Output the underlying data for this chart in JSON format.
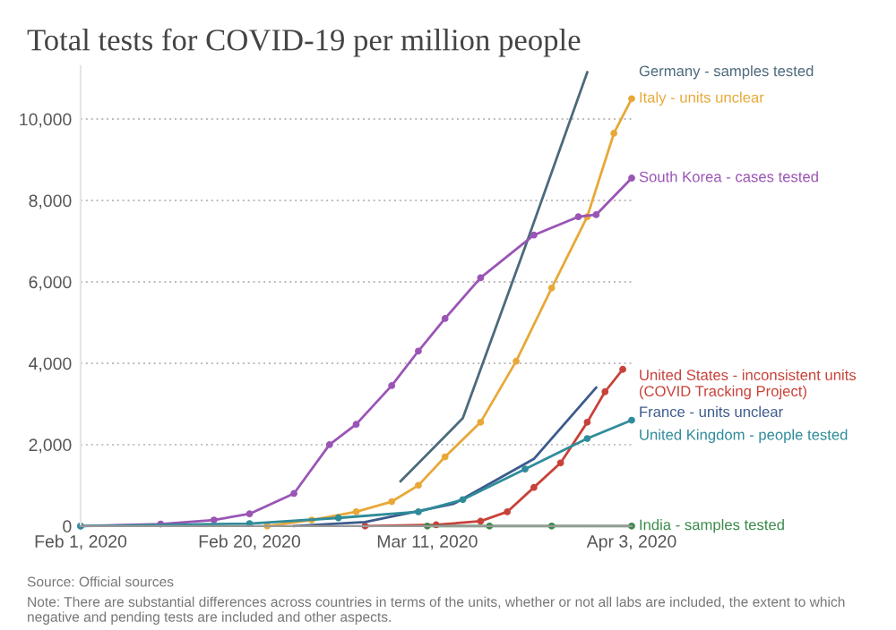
{
  "chart_data": {
    "type": "line",
    "title": "Total tests for COVID-19 per million people",
    "xlim": [
      "2020-02-01",
      "2020-04-03"
    ],
    "ylim": [
      0,
      11300
    ],
    "xticks": [
      {
        "value": "2020-02-01",
        "label": "Feb 1, 2020"
      },
      {
        "value": "2020-02-20",
        "label": "Feb 20, 2020"
      },
      {
        "value": "2020-03-11",
        "label": "Mar 11, 2020"
      },
      {
        "value": "2020-04-03",
        "label": "Apr 3, 2020"
      }
    ],
    "yticks": [
      0,
      {
        "value": 2000,
        "label": "2,000"
      },
      {
        "value": 4000,
        "label": "4,000"
      },
      {
        "value": 6000,
        "label": "6,000"
      },
      {
        "value": 8000,
        "label": "8,000"
      },
      {
        "value": 10000,
        "label": "10,000"
      }
    ],
    "grid": "y",
    "series": [
      {
        "name": "Germany - samples tested",
        "color": "#4c6a7c",
        "marker": "none",
        "x": [
          "2020-03-08",
          "2020-03-15",
          "2020-03-22",
          "2020-03-29"
        ],
        "values": [
          1100,
          2650,
          6850,
          11150
        ]
      },
      {
        "name": "Italy - units unclear",
        "color": "#e8a838",
        "marker": "circle",
        "x": [
          "2020-02-22",
          "2020-02-27",
          "2020-03-03",
          "2020-03-07",
          "2020-03-10",
          "2020-03-13",
          "2020-03-17",
          "2020-03-21",
          "2020-03-25",
          "2020-03-29",
          "2020-04-01",
          "2020-04-03"
        ],
        "values": [
          0,
          150,
          350,
          600,
          1000,
          1700,
          2550,
          4050,
          5850,
          7600,
          9650,
          10500
        ]
      },
      {
        "name": "South Korea - cases tested",
        "color": "#9a55b5",
        "marker": "circle",
        "x": [
          "2020-02-01",
          "2020-02-10",
          "2020-02-16",
          "2020-02-20",
          "2020-02-25",
          "2020-02-29",
          "2020-03-03",
          "2020-03-07",
          "2020-03-10",
          "2020-03-13",
          "2020-03-17",
          "2020-03-23",
          "2020-03-28",
          "2020-03-30",
          "2020-04-03"
        ],
        "values": [
          0,
          50,
          150,
          300,
          800,
          2000,
          2500,
          3450,
          4300,
          5100,
          6100,
          7150,
          7600,
          7650,
          8550
        ]
      },
      {
        "name": "United States - inconsistent units\n(COVID Tracking Project)",
        "color": "#c8423a",
        "marker": "circle",
        "x": [
          "2020-03-04",
          "2020-03-12",
          "2020-03-17",
          "2020-03-20",
          "2020-03-23",
          "2020-03-26",
          "2020-03-29",
          "2020-03-31",
          "2020-04-02"
        ],
        "values": [
          0,
          30,
          120,
          350,
          950,
          1550,
          2550,
          3300,
          3850
        ]
      },
      {
        "name": "France - units unclear",
        "color": "#3c5a8c",
        "marker": "none",
        "x": [
          "2020-02-25",
          "2020-03-04",
          "2020-03-14",
          "2020-03-23",
          "2020-03-30"
        ],
        "values": [
          0,
          100,
          550,
          1650,
          3400
        ]
      },
      {
        "name": "United Kingdom - people tested",
        "color": "#2f8c9a",
        "marker": "circle",
        "x": [
          "2020-02-01",
          "2020-02-20",
          "2020-03-01",
          "2020-03-10",
          "2020-03-15",
          "2020-03-22",
          "2020-03-29",
          "2020-04-03"
        ],
        "values": [
          0,
          60,
          200,
          350,
          650,
          1400,
          2150,
          2600
        ]
      },
      {
        "name": "India - samples tested",
        "color": "#3a8a4a",
        "marker": "circle",
        "x": [
          "2020-03-11",
          "2020-03-18",
          "2020-03-25",
          "2020-04-03"
        ],
        "values": [
          0,
          0,
          0,
          0
        ]
      }
    ],
    "annotations": [
      "Source: Official sources",
      "Note: There are substantial differences across countries in terms of the units, whether or not all labs are included, the extent to which negative and pending tests are included and other aspects."
    ]
  }
}
